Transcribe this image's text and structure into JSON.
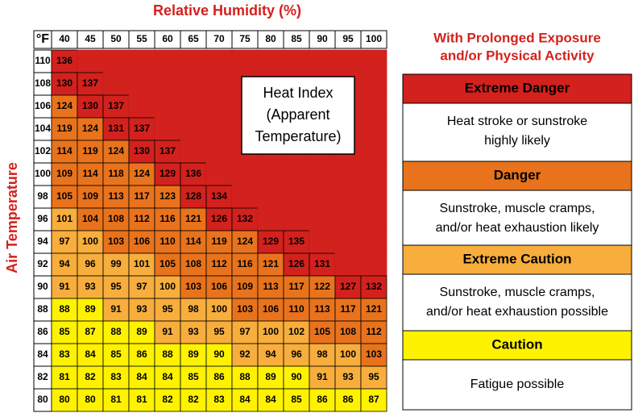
{
  "title": "Relative Humidity (%)",
  "y_label": "Air Temperature",
  "unit": "°F",
  "annotation": [
    "Heat Index",
    "(Apparent",
    "Temperature)"
  ],
  "table": {
    "columns": [
      40,
      45,
      50,
      55,
      60,
      65,
      70,
      75,
      80,
      85,
      90,
      95,
      100
    ],
    "rows": [
      {
        "temp": 110,
        "values": [
          136
        ]
      },
      {
        "temp": 108,
        "values": [
          130,
          137
        ]
      },
      {
        "temp": 106,
        "values": [
          124,
          130,
          137
        ]
      },
      {
        "temp": 104,
        "values": [
          119,
          124,
          131,
          137
        ]
      },
      {
        "temp": 102,
        "values": [
          114,
          119,
          124,
          130,
          137
        ]
      },
      {
        "temp": 100,
        "values": [
          109,
          114,
          118,
          124,
          129,
          136
        ]
      },
      {
        "temp": 98,
        "values": [
          105,
          109,
          113,
          117,
          123,
          128,
          134
        ]
      },
      {
        "temp": 96,
        "values": [
          101,
          104,
          108,
          112,
          116,
          121,
          126,
          132
        ]
      },
      {
        "temp": 94,
        "values": [
          97,
          100,
          103,
          106,
          110,
          114,
          119,
          124,
          129,
          135
        ]
      },
      {
        "temp": 92,
        "values": [
          94,
          96,
          99,
          101,
          105,
          108,
          112,
          116,
          121,
          126,
          131
        ]
      },
      {
        "temp": 90,
        "values": [
          91,
          93,
          95,
          97,
          100,
          103,
          106,
          109,
          113,
          117,
          122,
          127,
          132
        ]
      },
      {
        "temp": 88,
        "values": [
          88,
          89,
          91,
          93,
          95,
          98,
          100,
          103,
          106,
          110,
          113,
          117,
          121
        ]
      },
      {
        "temp": 86,
        "values": [
          85,
          87,
          88,
          89,
          91,
          93,
          95,
          97,
          100,
          102,
          105,
          108,
          112
        ]
      },
      {
        "temp": 84,
        "values": [
          83,
          84,
          85,
          86,
          88,
          89,
          90,
          92,
          94,
          96,
          98,
          100,
          103
        ]
      },
      {
        "temp": 82,
        "values": [
          81,
          82,
          83,
          84,
          84,
          85,
          86,
          88,
          89,
          90,
          91,
          93,
          95
        ]
      },
      {
        "temp": 80,
        "values": [
          80,
          80,
          81,
          81,
          82,
          82,
          83,
          84,
          84,
          85,
          86,
          86,
          87
        ]
      }
    ]
  },
  "legend": {
    "heading": [
      "With Prolonged Exposure",
      "and/or Physical Activity"
    ],
    "items": [
      {
        "level": "Extreme Danger",
        "color": "#d3211d",
        "text": [
          "Heat stroke or sunstroke",
          "highly likely"
        ]
      },
      {
        "level": "Danger",
        "color": "#e8731c",
        "text": [
          "Sunstroke, muscle cramps,",
          "and/or heat exhaustion likely"
        ]
      },
      {
        "level": "Extreme Caution",
        "color": "#f8ae3c",
        "text": [
          "Sunstroke, muscle cramps,",
          "and/or heat exhaustion possible"
        ]
      },
      {
        "level": "Caution",
        "color": "#fff200",
        "text": [
          "Fatigue possible"
        ]
      }
    ]
  }
}
